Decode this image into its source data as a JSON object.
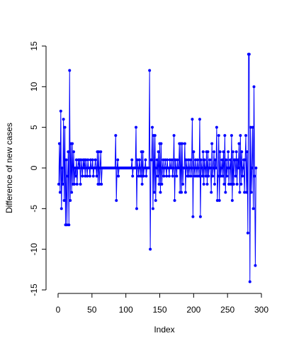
{
  "chart_data": {
    "type": "line",
    "xlabel": "Index",
    "ylabel": "Difference of new cases",
    "color": "#0000ff",
    "values": [
      -2,
      3,
      -3,
      7,
      -5,
      0,
      -2,
      6,
      -4,
      5,
      -7,
      1,
      -7,
      -1,
      2,
      -7,
      12,
      -4,
      3,
      -3,
      3,
      -2,
      2,
      -2,
      0,
      -1,
      1,
      -2,
      0,
      1,
      0,
      1,
      -2,
      1,
      0,
      -1,
      1,
      0,
      1,
      -1,
      1,
      0,
      -1,
      1,
      0,
      0,
      -1,
      1,
      0,
      0,
      1,
      -1,
      0,
      0,
      1,
      0,
      -1,
      2,
      -2,
      2,
      -2,
      0,
      2,
      -2,
      0,
      0,
      0,
      0,
      0,
      0,
      0,
      0,
      0,
      0,
      0,
      0,
      0,
      0,
      0,
      0,
      0,
      0,
      0,
      0,
      4,
      -4,
      0,
      1,
      -1,
      0,
      0,
      0,
      0,
      0,
      0,
      0,
      0,
      0,
      0,
      0,
      0,
      0,
      0,
      0,
      0,
      0,
      0,
      0,
      1,
      -1,
      0,
      0,
      0,
      0,
      5,
      -5,
      1,
      0,
      -1,
      1,
      0,
      -1,
      2,
      -2,
      2,
      -1,
      0,
      0,
      1,
      -1,
      0,
      0,
      0,
      0,
      12,
      -10,
      1,
      1,
      5,
      -5,
      4,
      -3,
      4,
      -4,
      0,
      1,
      -1,
      2,
      -2,
      3,
      -3,
      3,
      -2,
      0,
      1,
      -1,
      0,
      1,
      0,
      -1,
      1,
      0,
      0,
      -1,
      1,
      0,
      0,
      1,
      -1,
      0,
      4,
      -4,
      1,
      0,
      -1,
      1,
      0,
      0,
      3,
      -3,
      3,
      -3,
      3,
      -2,
      0,
      0,
      3,
      -3,
      1,
      0,
      -1,
      1,
      -1,
      0,
      1,
      -1,
      0,
      6,
      -6,
      2,
      0,
      -1,
      1,
      0,
      -1,
      1,
      0,
      -1,
      6,
      -6,
      1,
      0,
      -1,
      2,
      -2,
      1,
      0,
      -1,
      2,
      -2,
      2,
      -1,
      0,
      1,
      0,
      -3,
      3,
      -1,
      0,
      2,
      -2,
      1,
      0,
      5,
      -4,
      -1,
      4,
      -4,
      2,
      -1,
      0,
      1,
      -1,
      2,
      -2,
      4,
      -3,
      1,
      -1,
      0,
      2,
      -2,
      0,
      1,
      -2,
      4,
      -4,
      2,
      -2,
      1,
      1,
      -1,
      2,
      -2,
      1,
      0,
      3,
      -3,
      4,
      -2,
      2,
      -1,
      0,
      1,
      -3,
      1,
      4,
      -3,
      2,
      -8,
      14,
      14,
      -14,
      5,
      -3,
      0,
      5,
      -5,
      10,
      -1,
      -12,
      0
    ],
    "xlim": [
      -10.64,
      303.64
    ],
    "xticks": [
      0,
      50,
      100,
      150,
      200,
      250,
      300
    ],
    "ylim": [
      -15.12,
      15.12
    ],
    "yticks": [
      -15,
      -10,
      -5,
      0,
      5,
      10,
      15
    ]
  }
}
